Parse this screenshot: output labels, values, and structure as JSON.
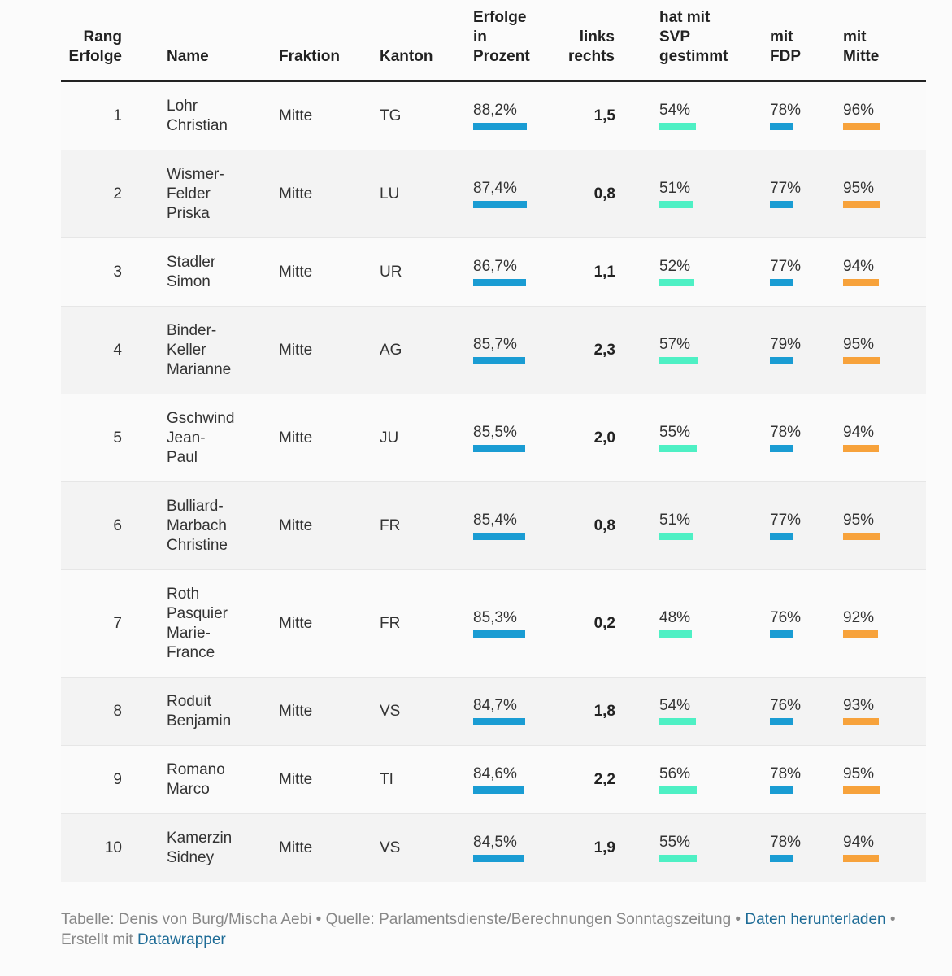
{
  "chart_data": {
    "type": "table",
    "headers": {
      "rank": [
        "Rang",
        "Erfolge"
      ],
      "name": [
        "Name"
      ],
      "fraktion": [
        "Fraktion"
      ],
      "kanton": [
        "Kanton"
      ],
      "erfolge": [
        "Erfolge",
        "in",
        "Prozent"
      ],
      "lr": [
        "links",
        "rechts"
      ],
      "svp": [
        "hat mit",
        "SVP",
        "gestimmt"
      ],
      "fdp": [
        "mit",
        "FDP"
      ],
      "mitte": [
        "mit",
        "Mitte"
      ]
    },
    "colors": {
      "erfolge": "#1a9cd3",
      "svp": "#4ef0c4",
      "fdp": "#1a9cd3",
      "mitte": "#f7a23b"
    },
    "rows": [
      {
        "rank": "1",
        "name": "Lohr\nChristian",
        "fraktion": "Mitte",
        "kanton": "TG",
        "erfolge": 88.2,
        "erfolge_label": "88,2%",
        "lr": "1,5",
        "svp": 54,
        "svp_label": "54%",
        "fdp": 78,
        "fdp_label": "78%",
        "mitte": 96,
        "mitte_label": "96%"
      },
      {
        "rank": "2",
        "name": "Wismer-\nFelder\nPriska",
        "fraktion": "Mitte",
        "kanton": "LU",
        "erfolge": 87.4,
        "erfolge_label": "87,4%",
        "lr": "0,8",
        "svp": 51,
        "svp_label": "51%",
        "fdp": 77,
        "fdp_label": "77%",
        "mitte": 95,
        "mitte_label": "95%"
      },
      {
        "rank": "3",
        "name": "Stadler\nSimon",
        "fraktion": "Mitte",
        "kanton": "UR",
        "erfolge": 86.7,
        "erfolge_label": "86,7%",
        "lr": "1,1",
        "svp": 52,
        "svp_label": "52%",
        "fdp": 77,
        "fdp_label": "77%",
        "mitte": 94,
        "mitte_label": "94%"
      },
      {
        "rank": "4",
        "name": "Binder-\nKeller\nMarianne",
        "fraktion": "Mitte",
        "kanton": "AG",
        "erfolge": 85.7,
        "erfolge_label": "85,7%",
        "lr": "2,3",
        "svp": 57,
        "svp_label": "57%",
        "fdp": 79,
        "fdp_label": "79%",
        "mitte": 95,
        "mitte_label": "95%"
      },
      {
        "rank": "5",
        "name": "Gschwind\nJean-\nPaul",
        "fraktion": "Mitte",
        "kanton": "JU",
        "erfolge": 85.5,
        "erfolge_label": "85,5%",
        "lr": "2,0",
        "svp": 55,
        "svp_label": "55%",
        "fdp": 78,
        "fdp_label": "78%",
        "mitte": 94,
        "mitte_label": "94%"
      },
      {
        "rank": "6",
        "name": "Bulliard-\nMarbach\nChristine",
        "fraktion": "Mitte",
        "kanton": "FR",
        "erfolge": 85.4,
        "erfolge_label": "85,4%",
        "lr": "0,8",
        "svp": 51,
        "svp_label": "51%",
        "fdp": 77,
        "fdp_label": "77%",
        "mitte": 95,
        "mitte_label": "95%"
      },
      {
        "rank": "7",
        "name": "Roth\nPasquier\nMarie-\nFrance",
        "fraktion": "Mitte",
        "kanton": "FR",
        "erfolge": 85.3,
        "erfolge_label": "85,3%",
        "lr": "0,2",
        "svp": 48,
        "svp_label": "48%",
        "fdp": 76,
        "fdp_label": "76%",
        "mitte": 92,
        "mitte_label": "92%"
      },
      {
        "rank": "8",
        "name": "Roduit\nBenjamin",
        "fraktion": "Mitte",
        "kanton": "VS",
        "erfolge": 84.7,
        "erfolge_label": "84,7%",
        "lr": "1,8",
        "svp": 54,
        "svp_label": "54%",
        "fdp": 76,
        "fdp_label": "76%",
        "mitte": 93,
        "mitte_label": "93%"
      },
      {
        "rank": "9",
        "name": "Romano\nMarco",
        "fraktion": "Mitte",
        "kanton": "TI",
        "erfolge": 84.6,
        "erfolge_label": "84,6%",
        "lr": "2,2",
        "svp": 56,
        "svp_label": "56%",
        "fdp": 78,
        "fdp_label": "78%",
        "mitte": 95,
        "mitte_label": "95%"
      },
      {
        "rank": "10",
        "name": "Kamerzin\nSidney",
        "fraktion": "Mitte",
        "kanton": "VS",
        "erfolge": 84.5,
        "erfolge_label": "84,5%",
        "lr": "1,9",
        "svp": 55,
        "svp_label": "55%",
        "fdp": 78,
        "fdp_label": "78%",
        "mitte": 94,
        "mitte_label": "94%"
      }
    ]
  },
  "footer": {
    "prefix": "Tabelle: Denis von Burg/Mischa Aebi • Quelle: Parlamentsdienste/Berechnungen Sonntagszeitung • ",
    "download_link": "Daten herunterladen",
    "sep": " •",
    "created_prefix": "Erstellt mit ",
    "datawrapper_link": "Datawrapper"
  }
}
